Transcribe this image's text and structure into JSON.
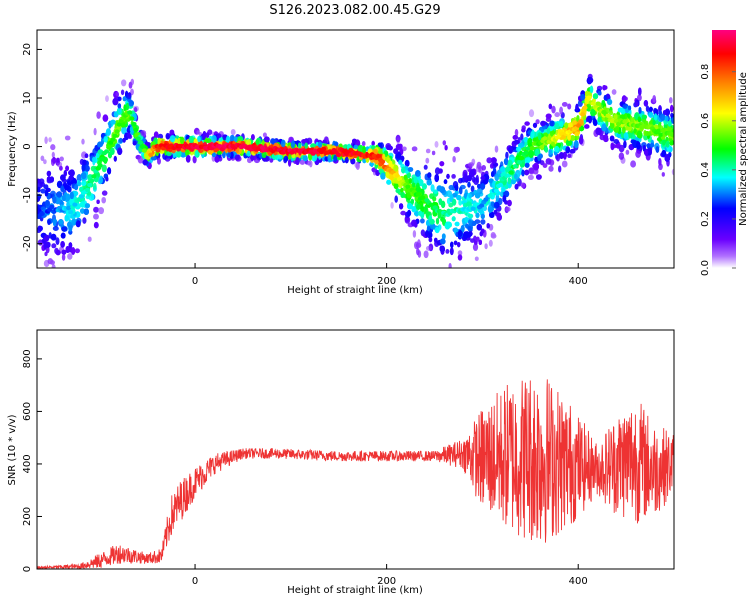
{
  "title": "S126.2023.082.00.45.G29",
  "chart_data": [
    {
      "type": "heatmap",
      "xlabel": "Height of straight line (km)",
      "ylabel": "Frequency (Hz)",
      "xlim": [
        -165,
        500
      ],
      "ylim": [
        -25,
        24
      ],
      "xticks": [
        0,
        200,
        400
      ],
      "yticks": [
        -20,
        -10,
        0,
        10,
        20
      ],
      "colorbar": {
        "label": "Normalized spectral amplitude",
        "range": [
          0.0,
          0.97
        ],
        "ticks": [
          0.0,
          0.2,
          0.4,
          0.6,
          0.8
        ],
        "colors": [
          "#ffffff",
          "#6a00ff",
          "#0000ff",
          "#00ffff",
          "#00ff00",
          "#ffff00",
          "#ff8000",
          "#ff0000",
          "#ff0080"
        ]
      },
      "ridge": {
        "x": [
          -130,
          -110,
          -90,
          -75,
          -68,
          -60,
          -50,
          -40,
          -20,
          0,
          50,
          100,
          150,
          190,
          210,
          225,
          260,
          300,
          330,
          350,
          380,
          400,
          410,
          420,
          440,
          470,
          500
        ],
        "y": [
          -13,
          -8,
          0,
          6,
          7,
          2,
          -2,
          0,
          0,
          0,
          0,
          -1,
          -1,
          -2,
          -6,
          -9,
          -14,
          -12,
          -5,
          0,
          2,
          4,
          10,
          8,
          5,
          4,
          2
        ]
      }
    },
    {
      "type": "line",
      "xlabel": "Height of straight line (km)",
      "ylabel": "SNR (10 * v/v)",
      "xlim": [
        -165,
        500
      ],
      "ylim": [
        0,
        910
      ],
      "xticks": [
        0,
        200,
        400
      ],
      "yticks": [
        0,
        200,
        400,
        600,
        800
      ],
      "color": "#ee3333",
      "envelope": {
        "x": [
          -165,
          -120,
          -100,
          -80,
          -50,
          -35,
          -25,
          -15,
          0,
          20,
          50,
          80,
          150,
          250,
          280,
          300,
          330,
          360,
          390,
          420,
          440,
          460,
          480,
          500
        ],
        "mean": [
          5,
          10,
          30,
          60,
          40,
          50,
          200,
          260,
          330,
          400,
          440,
          440,
          430,
          430,
          440,
          420,
          430,
          430,
          400,
          380,
          400,
          420,
          380,
          400
        ],
        "amp": [
          4,
          10,
          30,
          40,
          20,
          30,
          80,
          80,
          60,
          40,
          20,
          20,
          20,
          20,
          60,
          200,
          300,
          350,
          250,
          100,
          200,
          250,
          180,
          120
        ]
      }
    }
  ]
}
